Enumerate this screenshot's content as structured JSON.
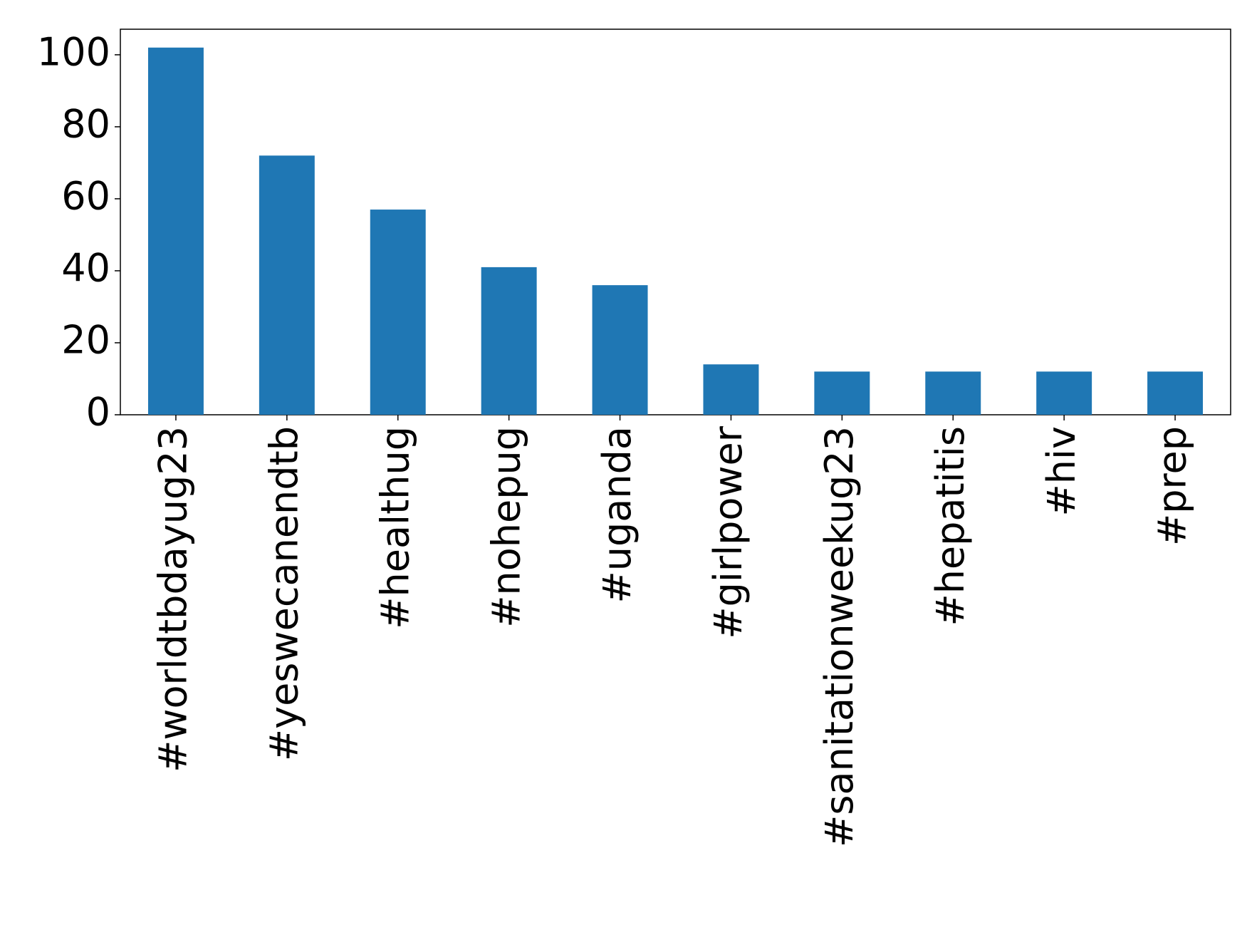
{
  "chart_data": {
    "type": "bar",
    "categories": [
      "#worldtbdayug23",
      "#yeswecanendtb",
      "#healthug",
      "#nohepug",
      "#uganda",
      "#girlpower",
      "#sanitationweekug23",
      "#hepatitis",
      "#hiv",
      "#prep"
    ],
    "values": [
      102,
      72,
      57,
      41,
      36,
      14,
      12,
      12,
      12,
      12
    ],
    "color": "#1f77b4",
    "ylim": [
      0,
      107.1
    ],
    "yticks": [
      0,
      20,
      40,
      60,
      80,
      100
    ],
    "grid": false
  }
}
